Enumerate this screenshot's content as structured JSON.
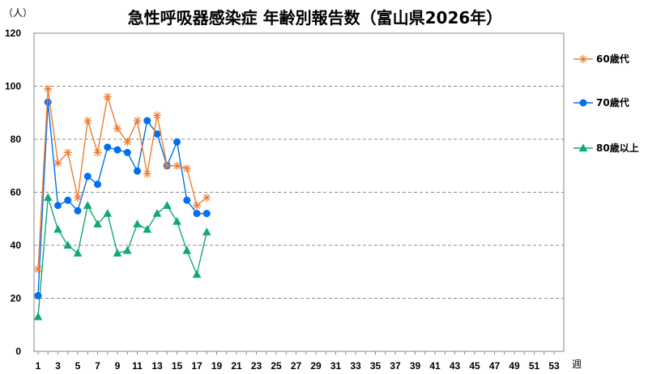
{
  "chart_data": {
    "type": "line",
    "title": "急性呼吸器感染症 年齢別報告数（富山県2026年）",
    "ylabel": "（人）",
    "xlabel": "週",
    "ylim": [
      0,
      120
    ],
    "yticks": [
      0,
      20,
      40,
      60,
      80,
      100,
      120
    ],
    "xlim": [
      1,
      53
    ],
    "xticks": [
      1,
      3,
      5,
      7,
      9,
      11,
      13,
      15,
      17,
      19,
      21,
      23,
      25,
      27,
      29,
      31,
      33,
      35,
      37,
      39,
      41,
      43,
      45,
      47,
      49,
      51,
      53
    ],
    "grid": "horizontal-dashed",
    "legend_position": "right",
    "x": [
      1,
      2,
      3,
      4,
      5,
      6,
      7,
      8,
      9,
      10,
      11,
      12,
      13,
      14,
      15,
      16,
      17,
      18
    ],
    "series": [
      {
        "name": "60歳代",
        "color": "#ED7D31",
        "marker": "star",
        "values": [
          31,
          99,
          71,
          75,
          58,
          87,
          75,
          96,
          84,
          79,
          87,
          67,
          89,
          70,
          70,
          69,
          55,
          58
        ]
      },
      {
        "name": "70歳代",
        "color": "#0070F0",
        "marker": "circle",
        "values": [
          21,
          94,
          55,
          57,
          53,
          66,
          63,
          77,
          76,
          75,
          68,
          87,
          82,
          70,
          79,
          57,
          52,
          52
        ]
      },
      {
        "name": "80歳以上",
        "color": "#10A878",
        "marker": "triangle",
        "values": [
          13,
          58,
          46,
          40,
          37,
          55,
          48,
          52,
          37,
          38,
          48,
          46,
          52,
          55,
          49,
          38,
          29,
          45
        ]
      }
    ]
  }
}
